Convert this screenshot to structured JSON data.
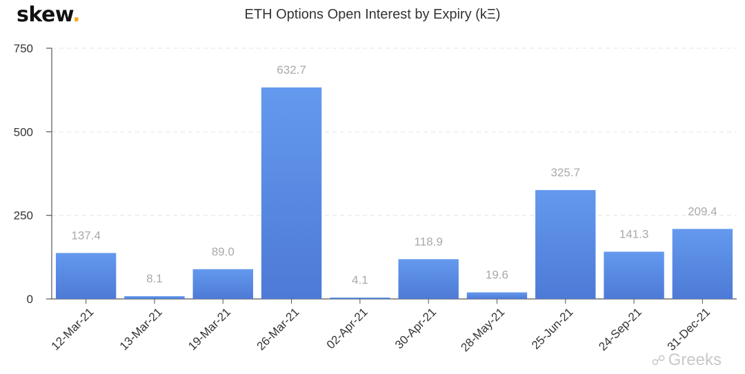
{
  "brand": {
    "name": "skew",
    "dot": "."
  },
  "watermark": {
    "text": "Greeks",
    "icon": "wechat-icon"
  },
  "colors": {
    "bar_top": "#6499ee",
    "bar_bottom": "#4d7ad6",
    "label": "#a9a9a9",
    "axis": "#555555",
    "grid": "#e3e3e3"
  },
  "chart_data": {
    "type": "bar",
    "title": "ETH Options Open Interest by Expiry (kΞ)",
    "xlabel": "",
    "ylabel": "",
    "categories": [
      "12-Mar-21",
      "13-Mar-21",
      "19-Mar-21",
      "26-Mar-21",
      "02-Apr-21",
      "30-Apr-21",
      "28-May-21",
      "25-Jun-21",
      "24-Sep-21",
      "31-Dec-21"
    ],
    "values": [
      137.4,
      8.1,
      89.0,
      632.7,
      4.1,
      118.9,
      19.6,
      325.7,
      141.3,
      209.4
    ],
    "value_labels": [
      "137.4",
      "8.1",
      "89.0",
      "632.7",
      "4.1",
      "118.9",
      "19.6",
      "325.7",
      "141.3",
      "209.4"
    ],
    "ylim": [
      0,
      750
    ],
    "yticks": [
      0,
      250,
      500,
      750
    ],
    "ytick_labels": [
      "0",
      "250",
      "500",
      "750"
    ],
    "grid": true
  }
}
